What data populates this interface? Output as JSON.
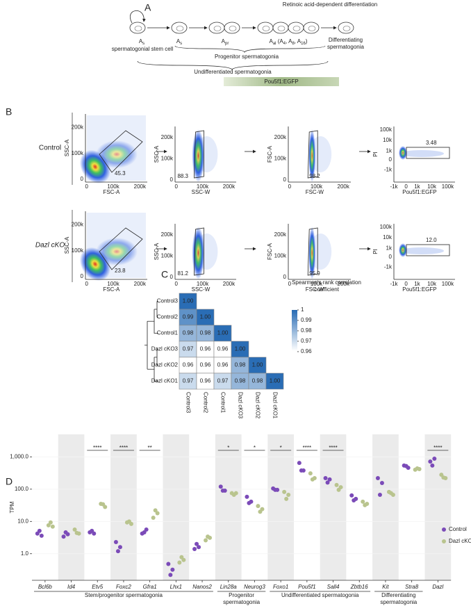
{
  "panel_a": {
    "label": "A",
    "cells": [
      [
        {
          "t": "A"
        },
        {
          "s": "s"
        }
      ],
      [
        {
          "t": "A"
        },
        {
          "s": "s"
        }
      ],
      [
        {
          "t": "A"
        },
        {
          "s": "pr"
        }
      ],
      [
        {
          "t": "A"
        },
        {
          "s": "al"
        },
        {
          "t": " (A"
        },
        {
          "s": "4"
        },
        {
          "t": ", A"
        },
        {
          "s": "8"
        },
        {
          "t": ", A"
        },
        {
          "s": "16"
        },
        {
          "t": ")"
        }
      ]
    ],
    "stem_cell": "spermatogonial stem cell",
    "progenitor": "Progenitor spermatogonia",
    "retinoic": "Retinoic acid-dependent differentiation",
    "differentiating": "Differentiating spermatogonia",
    "undifferentiated": "Undifferentiated spermatogonia",
    "marker": "Pou5f1:EGFP"
  },
  "panel_b": {
    "label": "B",
    "rows": [
      {
        "name": "Control",
        "plots": [
          {
            "ylabel": "SSC-A",
            "xlabel": "FSC-A",
            "yticks": [
              "200k",
              "100k",
              "0"
            ],
            "xticks": [
              "0",
              "100k",
              "200k"
            ],
            "gate": "45.3"
          },
          {
            "ylabel": "SSC-A",
            "xlabel": "SSC-W",
            "yticks": [
              "200k",
              "100k",
              "0"
            ],
            "xticks": [
              "0",
              "100k",
              "200k"
            ],
            "gate": "88.3"
          },
          {
            "ylabel": "FSC-A",
            "xlabel": "FSC-W",
            "yticks": [
              "200k",
              "100k",
              "0"
            ],
            "xticks": [
              "0",
              "100k",
              "200k"
            ],
            "gate": "98.2"
          },
          {
            "ylabel": "PI",
            "xlabel": "Pou5f1:EGFP",
            "yticks": [
              "100k",
              "10k",
              "1k",
              "0",
              "-1k"
            ],
            "xticks": [
              "-1k",
              "0",
              "1k",
              "10k",
              "100k"
            ],
            "gate": "3.48"
          }
        ]
      },
      {
        "name": "Dazl cKO",
        "plots": [
          {
            "ylabel": "SSC-A",
            "xlabel": "FSC-A",
            "yticks": [
              "200k",
              "100k",
              "0"
            ],
            "xticks": [
              "0",
              "100k",
              "200k"
            ],
            "gate": "23.8"
          },
          {
            "ylabel": "SSC-A",
            "xlabel": "SSC-W",
            "yticks": [
              "200k",
              "100k",
              "0"
            ],
            "xticks": [
              "0",
              "100k",
              "200k"
            ],
            "gate": "81.2"
          },
          {
            "ylabel": "FSC-A",
            "xlabel": "FSC-W",
            "yticks": [
              "200k",
              "100k",
              "0"
            ],
            "xticks": [
              "0",
              "100k",
              "200k"
            ],
            "gate": "95.9"
          },
          {
            "ylabel": "PI",
            "xlabel": "Pou5f1:EGFP",
            "yticks": [
              "100k",
              "10k",
              "1k",
              "0",
              "-1k"
            ],
            "xticks": [
              "-1k",
              "0",
              "1k",
              "10k",
              "100k"
            ],
            "gate": "12.0"
          }
        ]
      }
    ]
  },
  "chart_data": [
    {
      "type": "heatmap",
      "panel": "C",
      "title": "Spearman's rank correlation coefficient",
      "rows": [
        "Control3",
        "Control2",
        "Control1",
        "Dazl cKO3",
        "Dazl cKO2",
        "Dazl cKO1"
      ],
      "columns": [
        "Control3",
        "Control2",
        "Control1",
        "Dazl cKO3",
        "Dazl cKO2",
        "Dazl cKO1"
      ],
      "values": [
        [
          1
        ],
        [
          0.99,
          1
        ],
        [
          0.98,
          0.98,
          1
        ],
        [
          0.97,
          0.96,
          0.96,
          1
        ],
        [
          0.96,
          0.96,
          0.96,
          0.98,
          1
        ],
        [
          0.97,
          0.96,
          0.97,
          0.98,
          0.98,
          1
        ]
      ],
      "value_labels": [
        [
          "1.00"
        ],
        [
          "0.99",
          "1.00"
        ],
        [
          "0.98",
          "0.98",
          "1.00"
        ],
        [
          "0.97",
          "0.96",
          "0.96",
          "1.00"
        ],
        [
          "0.96",
          "0.96",
          "0.96",
          "0.98",
          "1.00"
        ],
        [
          "0.97",
          "0.96",
          "0.97",
          "0.98",
          "0.98",
          "1.00"
        ]
      ],
      "clim": [
        0.96,
        1
      ],
      "colorbar_ticks": [
        1,
        0.99,
        0.98,
        0.97,
        0.96
      ],
      "colors": [
        "#ffffff",
        "#2a6db5"
      ]
    },
    {
      "type": "dot",
      "panel": "D",
      "ylabel": "TPM",
      "log_scale": true,
      "ylim": [
        0.15,
        5000
      ],
      "yticks": [
        {
          "value": 1000,
          "label": "1,000.0"
        },
        {
          "value": 100,
          "label": "100.0"
        },
        {
          "value": 10,
          "label": "10.0"
        },
        {
          "value": 1,
          "label": "1.0"
        }
      ],
      "categories": [
        "Bcl6b",
        "Id4",
        "Etv5",
        "Foxc2",
        "Gfra1",
        "Lhx1",
        "Nanos2",
        "Lin28a",
        "Neurog3",
        "Foxo1",
        "Pou5f1",
        "Sall4",
        "Zbtb16",
        "Kit",
        "Stra8",
        "Dazl"
      ],
      "series": [
        {
          "name": "Control",
          "color": "#7b4bb8",
          "values": [
            [
              4.2,
              3.6,
              5.1
            ],
            [
              3.4,
              4,
              4.6
            ],
            [
              4.6,
              4.2,
              5.1
            ],
            [
              2.3,
              1.6,
              1.2
            ],
            [
              4.2,
              5.6,
              4.6
            ],
            [
              0.48,
              0.32,
              0.22
            ],
            [
              1.4,
              1.6,
              2
            ],
            [
              120,
              90,
              90
            ],
            [
              58,
              41,
              37
            ],
            [
              105,
              95,
              95
            ],
            [
              650,
              380,
              380
            ],
            [
              220,
              200,
              160
            ],
            [
              64,
              50,
              45
            ],
            [
              220,
              155,
              67
            ],
            [
              540,
              460,
              520
            ],
            [
              720,
              880,
              540
            ]
          ]
        },
        {
          "name": "Dazl cKO",
          "color": "#b9c48e",
          "values": [
            [
              7.6,
              6.9,
              9.3
            ],
            [
              5.6,
              4.2,
              4.4
            ],
            [
              35,
              28,
              34
            ],
            [
              9.3,
              8.4,
              10
            ],
            [
              13,
              18,
              22
            ],
            [
              0.53,
              0.64,
              0.78
            ],
            [
              2.6,
              3.1,
              3.4
            ],
            [
              75,
              75,
              67
            ],
            [
              30,
              24,
              20
            ],
            [
              82,
              67,
              50
            ],
            [
              310,
              220,
              200
            ],
            [
              135,
              115,
              95
            ],
            [
              41,
              35,
              32
            ],
            [
              82,
              67,
              75
            ],
            [
              400,
              420,
              440
            ],
            [
              280,
              220,
              230
            ]
          ]
        }
      ],
      "significance": [
        null,
        null,
        "****",
        "****",
        "**",
        null,
        null,
        "*",
        "*",
        "*",
        "****",
        "****",
        null,
        null,
        null,
        "****"
      ],
      "groups": [
        "Stem/progenitor spermatogonia",
        "Progenitor spermatogonia",
        "Undifferentiated spermatogonia",
        "Differentiating spermatogonia"
      ]
    }
  ]
}
